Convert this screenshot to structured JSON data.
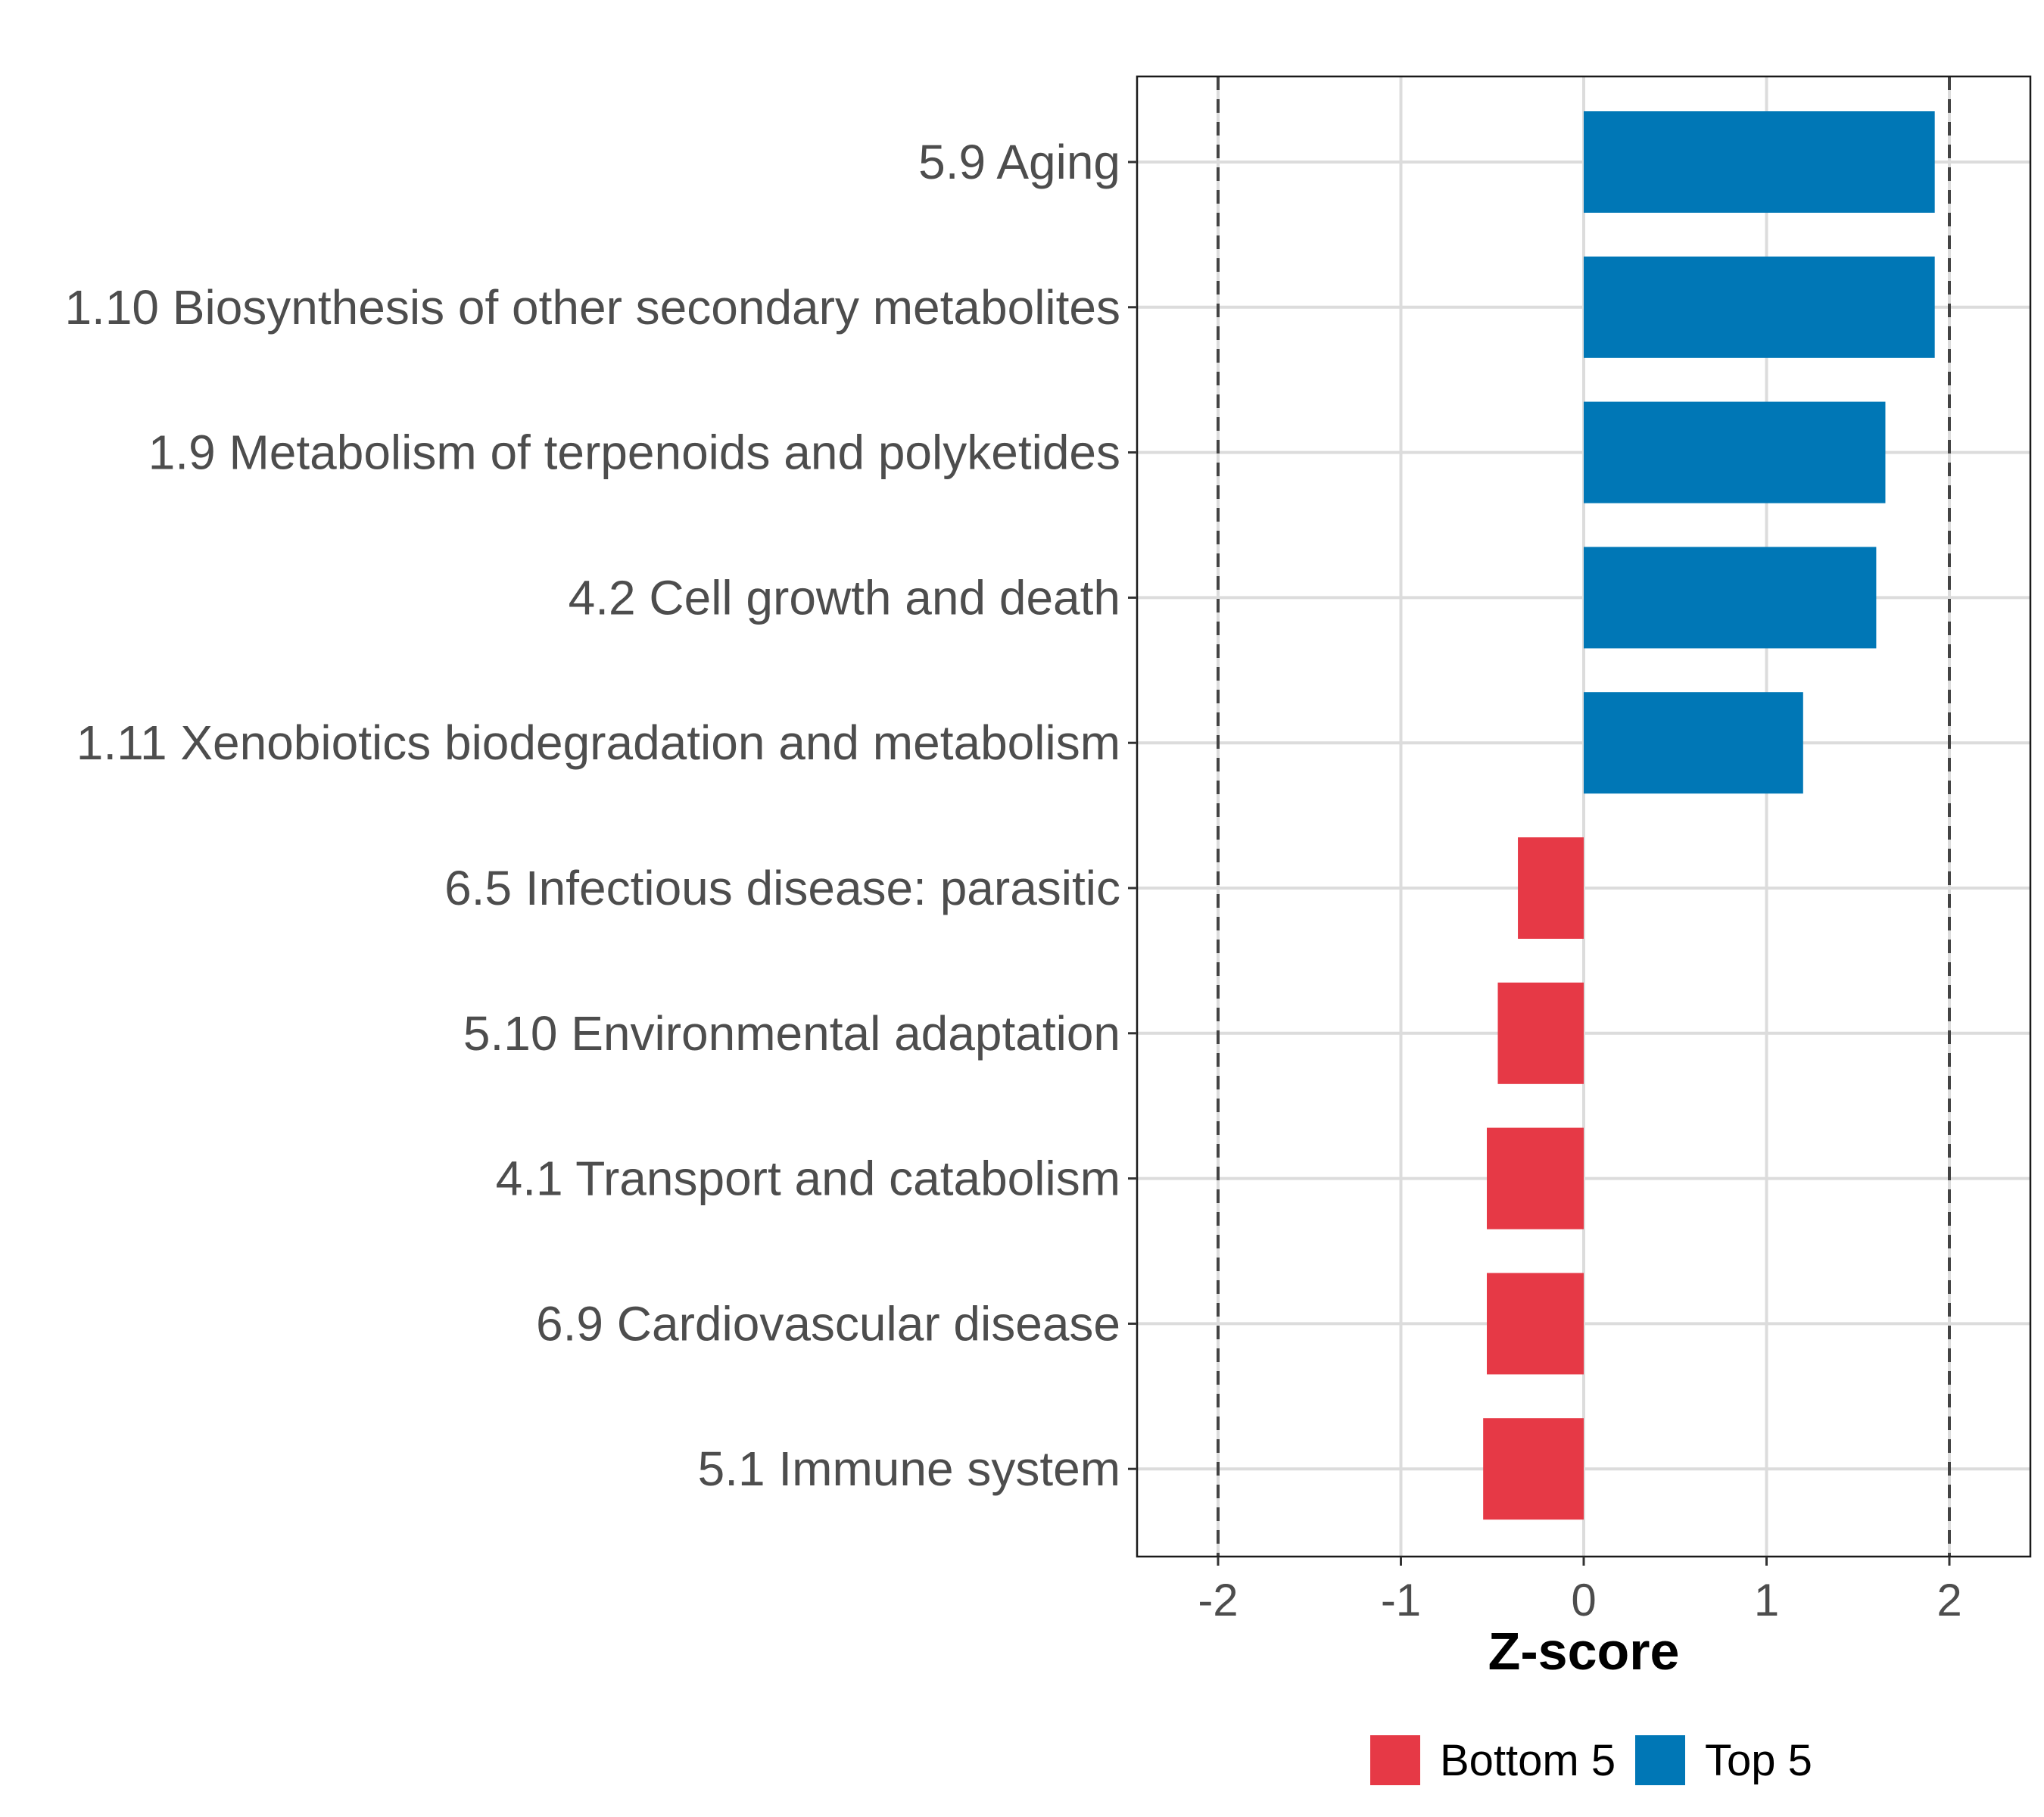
{
  "chart_data": {
    "type": "bar",
    "orientation": "horizontal",
    "title": "",
    "xlabel": "Z-score",
    "ylabel": "",
    "xlim": [
      -2.44,
      2.44
    ],
    "xticks": [
      -2,
      -1,
      0,
      1,
      2
    ],
    "xtick_labels": [
      "-2",
      "-1",
      "0",
      "1",
      "2"
    ],
    "reference_lines": [
      -2,
      2
    ],
    "grid": true,
    "legend_position": "bottom",
    "categories": [
      "5.9 Aging",
      "1.10 Biosynthesis of other secondary metabolites",
      "1.9 Metabolism of terpenoids and polyketides",
      "4.2 Cell growth and death",
      "1.11 Xenobiotics biodegradation and metabolism",
      "6.5 Infectious disease: parasitic",
      "5.10 Environmental adaptation",
      "4.1 Transport and catabolism",
      "6.9 Cardiovascular disease",
      "5.1 Immune system"
    ],
    "values": [
      1.92,
      1.92,
      1.65,
      1.6,
      1.2,
      -0.36,
      -0.47,
      -0.53,
      -0.53,
      -0.55
    ],
    "groups": [
      "Top 5",
      "Top 5",
      "Top 5",
      "Top 5",
      "Top 5",
      "Bottom 5",
      "Bottom 5",
      "Bottom 5",
      "Bottom 5",
      "Bottom 5"
    ],
    "series": [
      {
        "name": "Bottom 5",
        "color": "#E63946"
      },
      {
        "name": "Top 5",
        "color": "#0077B6"
      }
    ]
  }
}
